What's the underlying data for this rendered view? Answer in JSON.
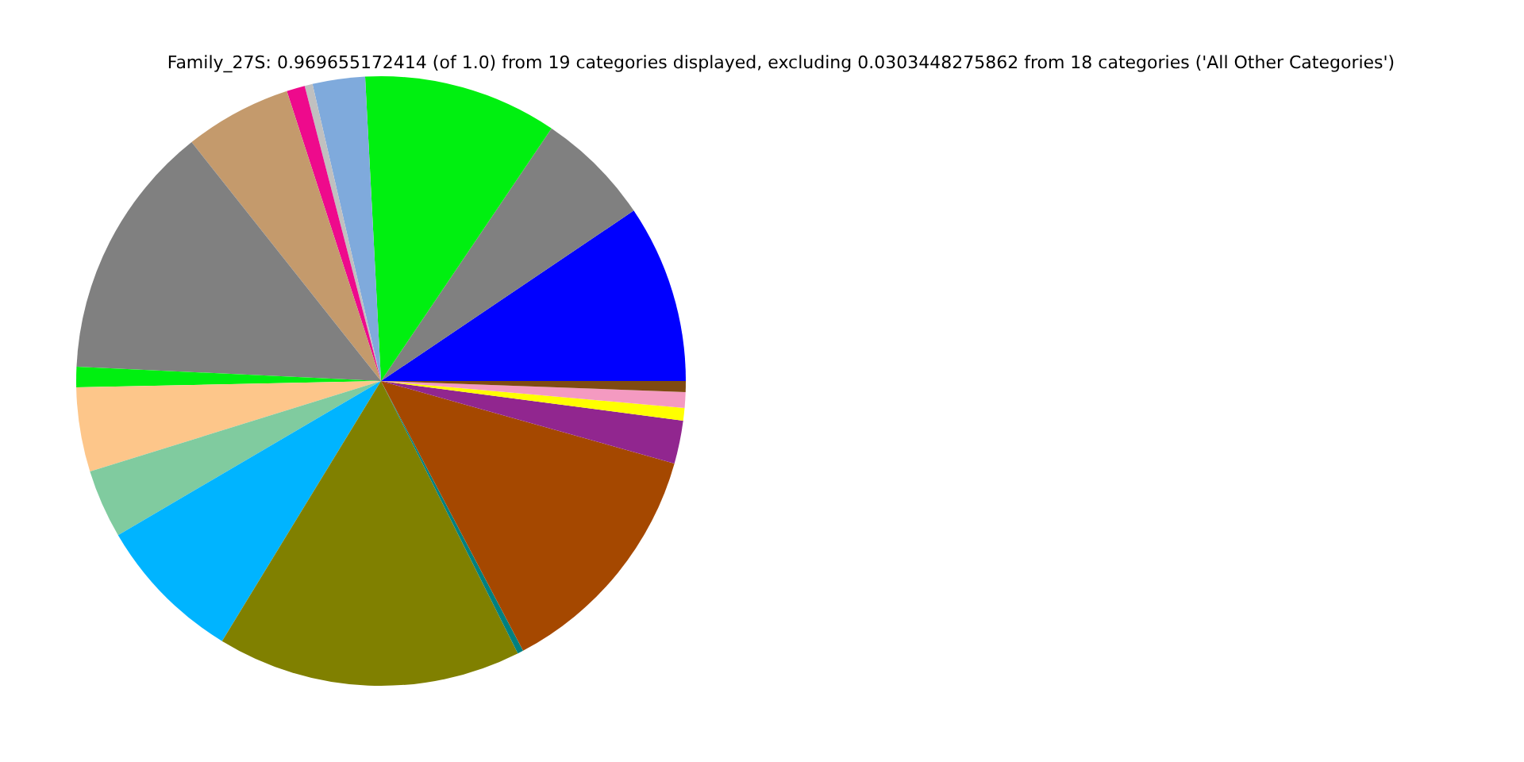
{
  "chart_data": {
    "type": "pie",
    "title": "Family_27S: 0.969655172414 (of 1.0) from 19 categories displayed, excluding 0.0303448275862 from 18 categories ('All Other Categories')",
    "categories": [
      null,
      null,
      null,
      null,
      null,
      null,
      null,
      null,
      null,
      null,
      null,
      null,
      null,
      null,
      null,
      null,
      null,
      null,
      null
    ],
    "values": [
      9.44,
      6.11,
      10.28,
      2.78,
      0.42,
      0.97,
      5.67,
      13.58,
      1.08,
      4.47,
      3.64,
      7.83,
      16.14,
      0.31,
      12.92,
      2.28,
      0.67,
      0.83,
      0.58
    ],
    "colors": [
      "#0000ff",
      "#808080",
      "#00f010",
      "#7faadc",
      "#c0c0c0",
      "#ee0a8c",
      "#c49a6c",
      "#808080",
      "#00f010",
      "#fdc68a",
      "#80cb9f",
      "#00b4ff",
      "#808000",
      "#008080",
      "#a54800",
      "#91268f",
      "#ffff00",
      "#f49ac1",
      "#7f4a11"
    ]
  }
}
